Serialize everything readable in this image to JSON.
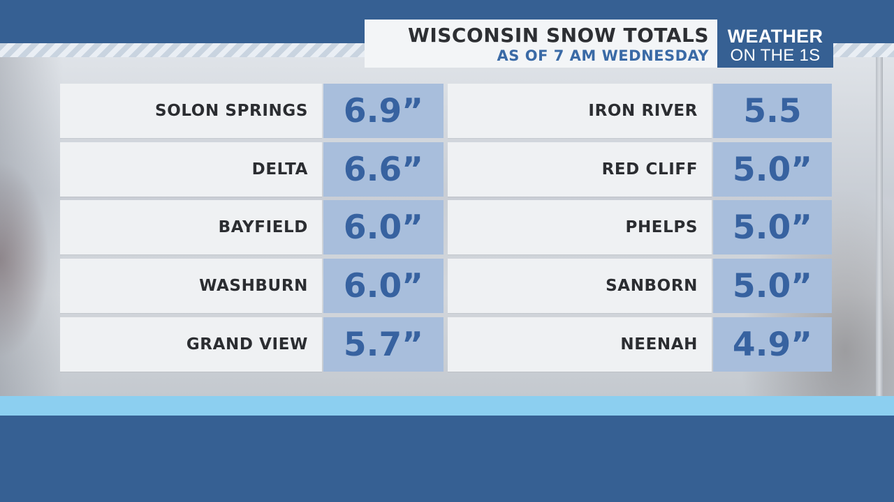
{
  "header": {
    "title": "WISCONSIN SNOW TOTALS",
    "subtitle": "AS OF 7 AM WEDNESDAY"
  },
  "logo": {
    "line1": "WEATHER",
    "line2": "ON THE 1S"
  },
  "totals": {
    "left": [
      {
        "location": "SOLON SPRINGS",
        "amount": "6.9”"
      },
      {
        "location": "DELTA",
        "amount": "6.6”"
      },
      {
        "location": "BAYFIELD",
        "amount": "6.0”"
      },
      {
        "location": "WASHBURN",
        "amount": "6.0”"
      },
      {
        "location": "GRAND VIEW",
        "amount": "5.7”"
      }
    ],
    "right": [
      {
        "location": "IRON RIVER",
        "amount": "5.5"
      },
      {
        "location": "RED CLIFF",
        "amount": "5.0”"
      },
      {
        "location": "PHELPS",
        "amount": "5.0”"
      },
      {
        "location": "SANBORN",
        "amount": "5.0”"
      },
      {
        "location": "NEENAH",
        "amount": "4.9”"
      }
    ]
  },
  "colors": {
    "brand_blue": "#366093",
    "value_cell": "#a8bedc",
    "value_text": "#3762a0",
    "accent_bar": "#8ccff0"
  }
}
